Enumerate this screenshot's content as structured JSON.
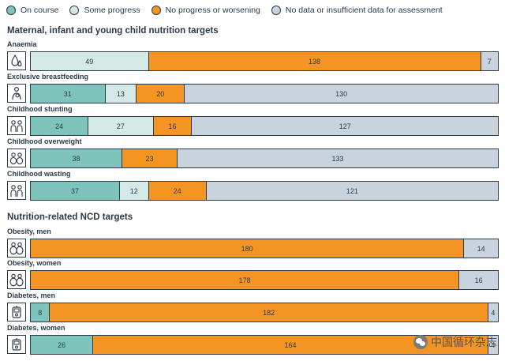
{
  "legend": [
    {
      "label": "On course",
      "color": "#7ec4bd"
    },
    {
      "label": "Some progress",
      "color": "#d5eae6"
    },
    {
      "label": "No progress or worsening",
      "color": "#f39423"
    },
    {
      "label": "No data or insufficient data for assessment",
      "color": "#c8d3de"
    }
  ],
  "sections": [
    {
      "title": "Maternal, infant and young child nutrition targets"
    },
    {
      "title": "Nutrition-related NCD targets"
    }
  ],
  "watermark": {
    "text": "中国循环杂志"
  },
  "chart_data": {
    "type": "bar",
    "orientation": "horizontal",
    "stacked": true,
    "series_names": [
      "On course",
      "Some progress",
      "No progress or worsening",
      "No data or insufficient data for assessment"
    ],
    "colors": [
      "#7ec4bd",
      "#d5eae6",
      "#f39423",
      "#c8d3de"
    ],
    "rows": [
      {
        "section": 0,
        "label": "Anaemia",
        "icon": "water-drop-icon",
        "values": [
          0,
          49,
          138,
          7
        ]
      },
      {
        "section": 0,
        "label": "Exclusive breastfeeding",
        "icon": "mother-child-icon",
        "values": [
          31,
          13,
          20,
          130
        ]
      },
      {
        "section": 0,
        "label": "Childhood stunting",
        "icon": "children-icon",
        "values": [
          24,
          27,
          16,
          127
        ]
      },
      {
        "section": 0,
        "label": "Childhood overweight",
        "icon": "overweight-children-icon",
        "values": [
          38,
          0,
          23,
          133
        ]
      },
      {
        "section": 0,
        "label": "Childhood wasting",
        "icon": "children-icon",
        "values": [
          37,
          12,
          24,
          121
        ]
      },
      {
        "section": 1,
        "label": "Obesity, men",
        "icon": "obesity-icon",
        "values": [
          0,
          0,
          180,
          14
        ]
      },
      {
        "section": 1,
        "label": "Obesity, women",
        "icon": "obesity-icon",
        "values": [
          0,
          0,
          178,
          16
        ]
      },
      {
        "section": 1,
        "label": "Diabetes, men",
        "icon": "glucose-meter-icon",
        "values": [
          8,
          0,
          182,
          4
        ]
      },
      {
        "section": 1,
        "label": "Diabetes, women",
        "icon": "glucose-meter-icon",
        "values": [
          26,
          0,
          164,
          4
        ]
      }
    ]
  }
}
